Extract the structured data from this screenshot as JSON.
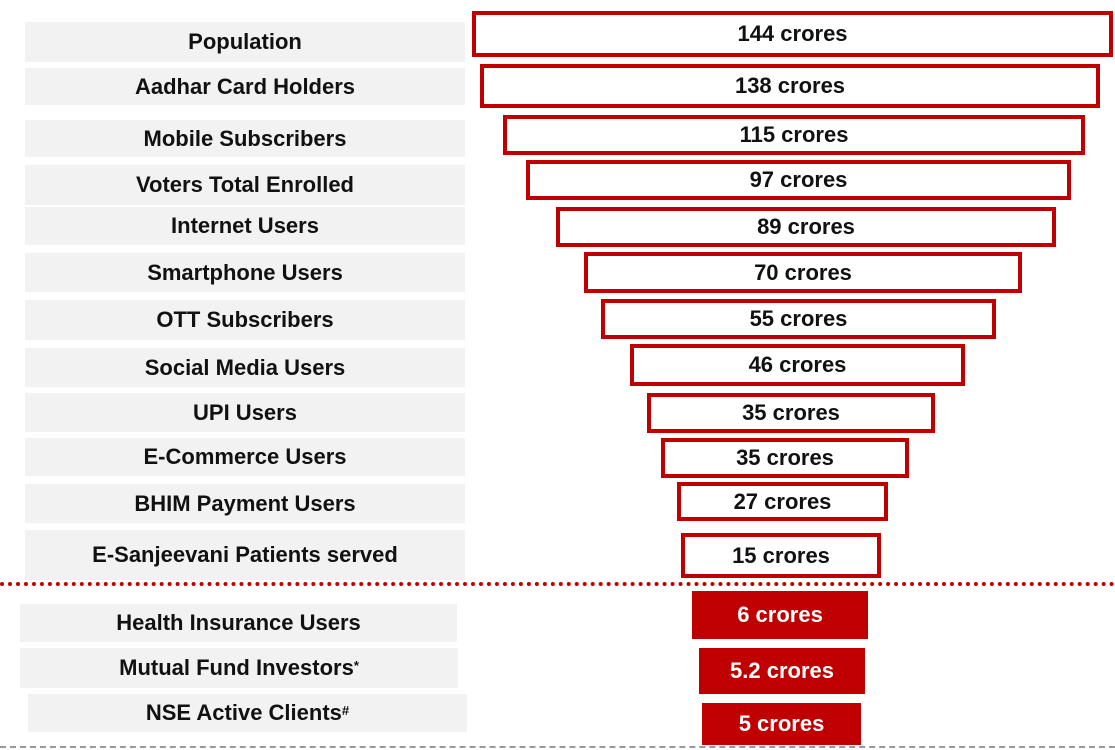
{
  "rows": [
    {
      "label": "Population",
      "value": "144 crores"
    },
    {
      "label": "Aadhar Card Holders",
      "value": "138 crores"
    },
    {
      "label": "Mobile Subscribers",
      "value": "115 crores"
    },
    {
      "label": "Voters Total Enrolled",
      "value": "97 crores"
    },
    {
      "label": "Internet Users",
      "value": "89 crores"
    },
    {
      "label": "Smartphone Users",
      "value": "70 crores"
    },
    {
      "label": "OTT Subscribers",
      "value": "55 crores"
    },
    {
      "label": "Social Media Users",
      "value": "46 crores"
    },
    {
      "label": "UPI Users",
      "value": "35 crores"
    },
    {
      "label": "E-Commerce Users",
      "value": "35 crores"
    },
    {
      "label": "BHIM Payment Users",
      "value": "27 crores"
    },
    {
      "label": "E-Sanjeevani Patients served",
      "value": "15 crores"
    },
    {
      "label": "Health Insurance Users",
      "value": "6 crores"
    },
    {
      "label": "Mutual Fund Investors",
      "mark": "*",
      "value": "5.2 crores"
    },
    {
      "label": "NSE Active Clients",
      "mark": "#",
      "value": "5 crores"
    }
  ]
}
